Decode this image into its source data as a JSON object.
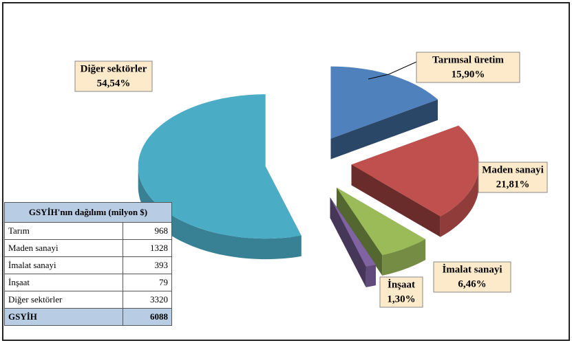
{
  "chart_data": {
    "type": "pie3d",
    "categories": [
      "Tarımsal üretim",
      "Maden sanayi",
      "İmalat sanayi",
      "İnşaat",
      "Diğer sektörler"
    ],
    "values": [
      15.9,
      21.81,
      6.46,
      1.3,
      54.54
    ],
    "value_labels": [
      "15,90%",
      "21,81%",
      "6,46%",
      "1,30%",
      "54,54%"
    ],
    "colors": [
      "#4f81bd",
      "#c0504d",
      "#9bbb59",
      "#8064a2",
      "#4bacc6"
    ]
  },
  "table": {
    "title": "GSYİH'nın dağılımı (milyon $)",
    "rows": [
      [
        "Tarım",
        "968"
      ],
      [
        "Maden sanayi",
        "1328"
      ],
      [
        "İmalat sanayi",
        "393"
      ],
      [
        "İnşaat",
        "79"
      ],
      [
        "Diğer sektörler",
        "3320"
      ]
    ],
    "total": [
      "GSYİH",
      "6088"
    ]
  }
}
